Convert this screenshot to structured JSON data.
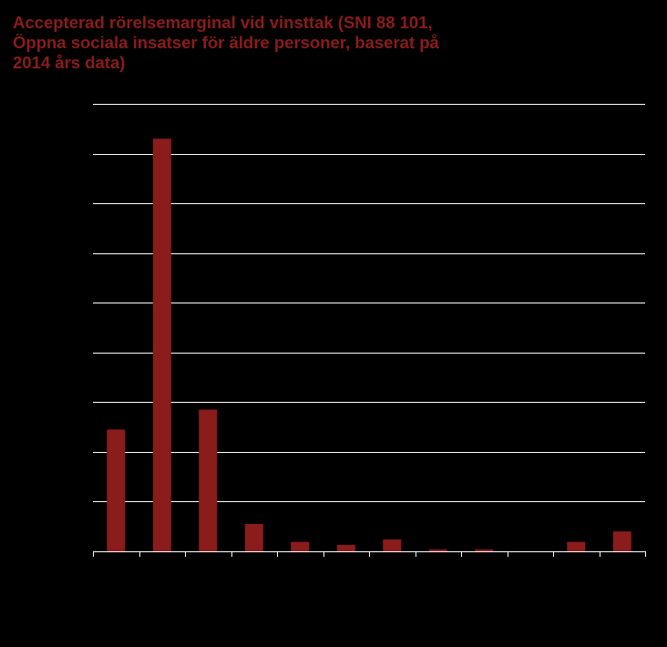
{
  "chart_data": {
    "type": "bar",
    "title": "Accepterad rörelsemarginal vid vinsttak (SNI 88 101,\nÖppna sociala insatser för äldre personer, baserat på\n2014 års data)",
    "xlabel": "",
    "ylabel": "",
    "categories": [
      "",
      "",
      "",
      "",
      "",
      "",
      "",
      "",
      "",
      "",
      "",
      ""
    ],
    "values": [
      24.5,
      83,
      28.5,
      5.5,
      1.9,
      1.3,
      2.4,
      0.4,
      0.4,
      0,
      1.9,
      4.0
    ],
    "ylim": [
      0,
      90
    ],
    "ytick_step": 10,
    "grid": true,
    "legend": "none",
    "colors": {
      "bar": "#8a1c1c",
      "grid": "#ffffff",
      "background": "#000000",
      "title": "#8a1c1c"
    }
  }
}
